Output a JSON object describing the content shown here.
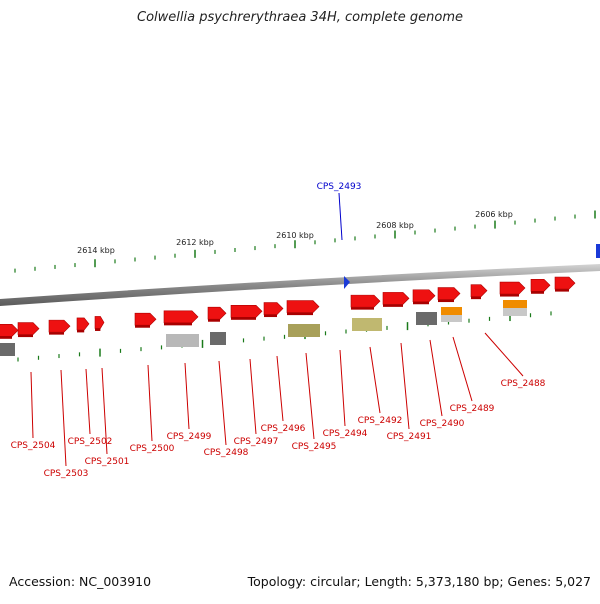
{
  "title": "Colwellia psychrerythraea 34H, complete genome",
  "footer": {
    "accession": "Accession: NC_003910",
    "summary": "Topology: circular; Length: 5,373,180 bp; Genes: 5,027"
  },
  "colors": {
    "backbone": "#8a8a8a",
    "gene_forward": "#ee1111",
    "gene_label": "#cc0000",
    "highlight_label": "#0000cc",
    "tick": "#1a7a1a"
  },
  "scale_ticks": [
    "2614 kbp",
    "2612 kbp",
    "2610 kbp",
    "2608 kbp",
    "2606 kbp"
  ],
  "highlight": {
    "label": "CPS_2493"
  },
  "genes": [
    {
      "label": "CPS_2504"
    },
    {
      "label": "CPS_2503"
    },
    {
      "label": "CPS_2502"
    },
    {
      "label": "CPS_2501"
    },
    {
      "label": "CPS_2500"
    },
    {
      "label": "CPS_2499"
    },
    {
      "label": "CPS_2498"
    },
    {
      "label": "CPS_2497"
    },
    {
      "label": "CPS_2496"
    },
    {
      "label": "CPS_2495"
    },
    {
      "label": "CPS_2494"
    },
    {
      "label": "CPS_2492"
    },
    {
      "label": "CPS_2491"
    },
    {
      "label": "CPS_2490"
    },
    {
      "label": "CPS_2489"
    },
    {
      "label": "CPS_2488"
    }
  ]
}
